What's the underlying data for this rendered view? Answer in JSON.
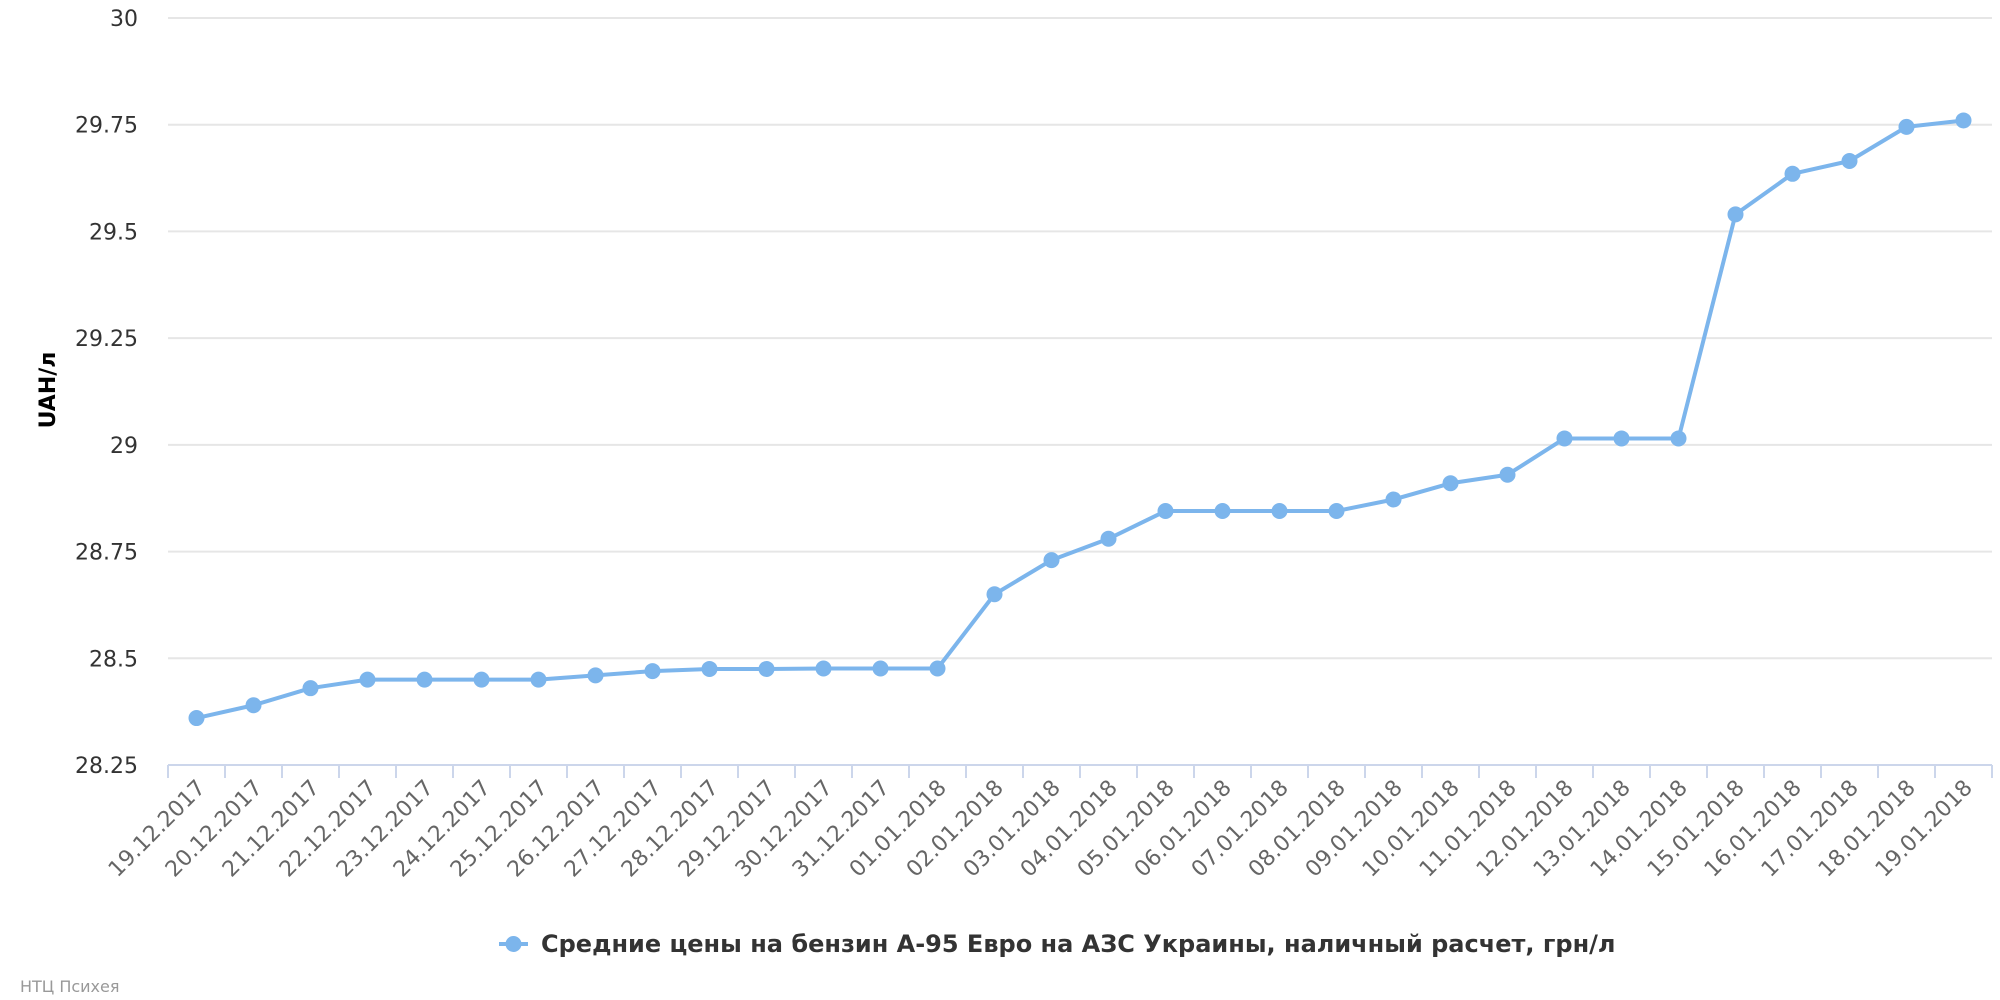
{
  "chart_data": {
    "type": "line",
    "title": "",
    "xlabel": "",
    "ylabel": "UAH/л",
    "ylim": [
      28.25,
      30
    ],
    "yticks": [
      "28.25",
      "28.5",
      "28.75",
      "29",
      "29.25",
      "29.5",
      "29.75",
      "30"
    ],
    "grid": true,
    "legend_position": "bottom-center",
    "categories": [
      "19.12.2017",
      "20.12.2017",
      "21.12.2017",
      "22.12.2017",
      "23.12.2017",
      "24.12.2017",
      "25.12.2017",
      "26.12.2017",
      "27.12.2017",
      "28.12.2017",
      "29.12.2017",
      "30.12.2017",
      "31.12.2017",
      "01.01.2018",
      "02.01.2018",
      "03.01.2018",
      "04.01.2018",
      "05.01.2018",
      "06.01.2018",
      "07.01.2018",
      "08.01.2018",
      "09.01.2018",
      "10.01.2018",
      "11.01.2018",
      "12.01.2018",
      "13.01.2018",
      "14.01.2018",
      "15.01.2018",
      "16.01.2018",
      "17.01.2018",
      "18.01.2018",
      "19.01.2018"
    ],
    "series": [
      {
        "name": "Средние цены на бензин А-95 Евро на АЗС Украины, наличный расчет, грн/л",
        "color": "#7cb5ec",
        "values": [
          28.36,
          28.39,
          28.43,
          28.45,
          28.45,
          28.45,
          28.45,
          28.46,
          28.47,
          28.475,
          28.475,
          28.476,
          28.476,
          28.476,
          28.65,
          28.73,
          28.78,
          28.845,
          28.845,
          28.845,
          28.845,
          28.872,
          28.91,
          28.93,
          29.015,
          29.015,
          29.015,
          29.54,
          29.635,
          29.665,
          29.745,
          29.76
        ]
      }
    ]
  },
  "credits": "НТЦ Психея"
}
